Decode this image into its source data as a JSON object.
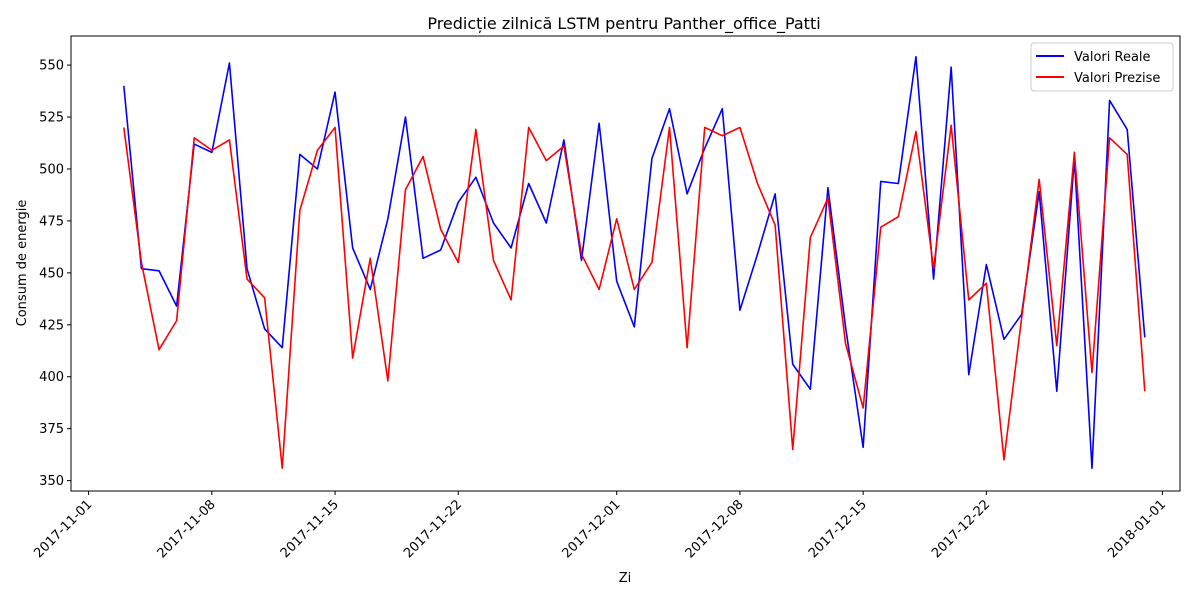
{
  "chart_data": {
    "type": "line",
    "title": "Predicție zilnică LSTM pentru Panther_office_Patti",
    "xlabel": "Zi",
    "ylabel": "Consum de energie",
    "x_start": "2017-11-03",
    "x_ticks": [
      "2017-11-01",
      "2017-11-08",
      "2017-11-15",
      "2017-11-22",
      "2017-12-01",
      "2017-12-08",
      "2017-12-15",
      "2017-12-22",
      "2018-01-01"
    ],
    "xlim": [
      "2017-10-31",
      "2018-01-02"
    ],
    "y_ticks": [
      350,
      375,
      400,
      425,
      450,
      475,
      500,
      525,
      550
    ],
    "ylim": [
      345,
      564
    ],
    "grid": false,
    "legend_position": "top-right",
    "colors": {
      "series_0": "#0000ff",
      "series_1": "#ff0000"
    },
    "series": [
      {
        "name": "Valori Reale",
        "values": [
          540,
          452,
          451,
          434,
          512,
          508,
          551,
          452,
          423,
          414,
          507,
          500,
          537,
          462,
          442,
          476,
          525,
          457,
          461,
          484,
          496,
          474,
          462,
          493,
          474,
          514,
          456,
          522,
          446,
          424,
          505,
          529,
          488,
          510,
          529,
          432,
          459,
          488,
          406,
          394,
          491,
          424,
          366,
          494,
          493,
          554,
          447,
          549,
          401,
          454,
          418,
          430,
          489,
          393,
          505,
          356,
          533,
          519,
          419
        ]
      },
      {
        "name": "Valori Prezise",
        "values": [
          520,
          455,
          413,
          427,
          515,
          509,
          514,
          447,
          438,
          356,
          480,
          509,
          520,
          409,
          457,
          398,
          490,
          506,
          471,
          455,
          519,
          456,
          437,
          520,
          504,
          511,
          459,
          442,
          476,
          442,
          455,
          520,
          414,
          520,
          516,
          520,
          493,
          473,
          365,
          467,
          486,
          416,
          385,
          472,
          477,
          518,
          452,
          521,
          437,
          445,
          360,
          428,
          495,
          415,
          508,
          402,
          515,
          507,
          393
        ]
      }
    ]
  }
}
